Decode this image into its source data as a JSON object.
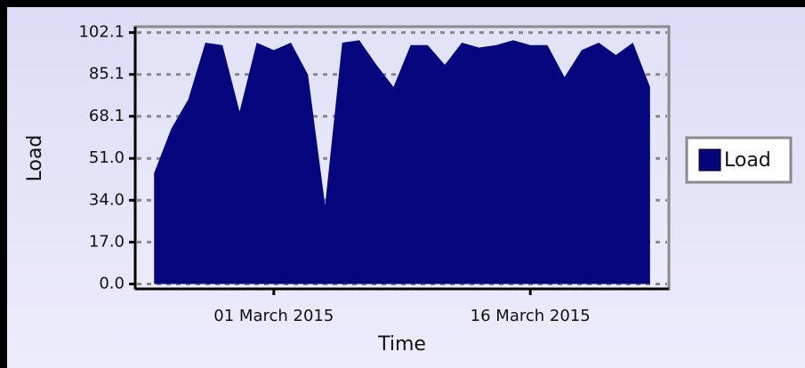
{
  "chart_data": {
    "type": "area",
    "x_label": "Time",
    "y_label": "Load",
    "x": [
      "2015-02-22",
      "2015-02-23",
      "2015-02-24",
      "2015-02-25",
      "2015-02-26",
      "2015-02-27",
      "2015-02-28",
      "2015-03-01",
      "2015-03-02",
      "2015-03-03",
      "2015-03-04",
      "2015-03-05",
      "2015-03-06",
      "2015-03-07",
      "2015-03-08",
      "2015-03-09",
      "2015-03-10",
      "2015-03-11",
      "2015-03-12",
      "2015-03-13",
      "2015-03-14",
      "2015-03-15",
      "2015-03-16",
      "2015-03-17",
      "2015-03-18",
      "2015-03-19",
      "2015-03-20",
      "2015-03-21",
      "2015-03-22",
      "2015-03-23"
    ],
    "series": [
      {
        "name": "Load",
        "color": "#05057e",
        "values": [
          45,
          63,
          75,
          98,
          97,
          70,
          98,
          95,
          98,
          85,
          32,
          98,
          99,
          89,
          80,
          97,
          97,
          89,
          98,
          96,
          97,
          99,
          97,
          97,
          84,
          95,
          98,
          93,
          98,
          80
        ]
      }
    ],
    "xlim": [
      "2015-02-21",
      "2015-03-24"
    ],
    "xticks": [
      {
        "value": "2015-03-01",
        "label": "01 March 2015"
      },
      {
        "value": "2015-03-16",
        "label": "16 March 2015"
      }
    ],
    "ylim": [
      -2,
      104.5
    ],
    "yticks": [
      {
        "value": 0,
        "label": "0.0"
      },
      {
        "value": 17,
        "label": "17.0"
      },
      {
        "value": 34,
        "label": "34.0"
      },
      {
        "value": 51,
        "label": "51.0"
      },
      68.1,
      85.1,
      102.1
    ],
    "grid": true,
    "legend": "right"
  }
}
